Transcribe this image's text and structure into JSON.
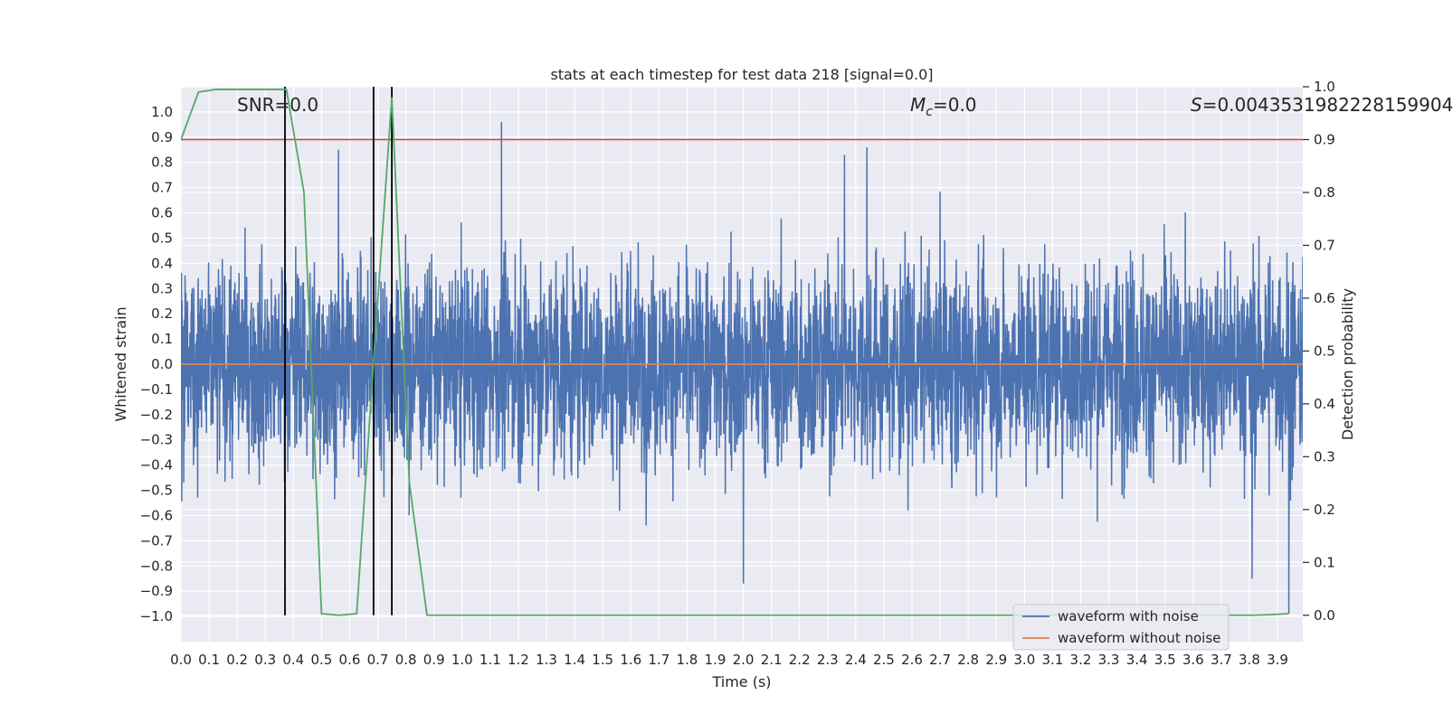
{
  "chart_data": {
    "type": "line",
    "title": "stats at each timestep for test data 218 [signal=0.0]",
    "xlabel": "Time (s)",
    "ylabel": "Whitened strain",
    "y2label": "Detection probability",
    "xlim": [
      0.0,
      3.99
    ],
    "ylim": [
      -1.1,
      1.1
    ],
    "y2lim": [
      -0.05,
      1.0
    ],
    "x_ticks": [
      "0.0",
      "0.1",
      "0.2",
      "0.3",
      "0.4",
      "0.5",
      "0.6",
      "0.7",
      "0.8",
      "0.9",
      "1.0",
      "1.1",
      "1.2",
      "1.3",
      "1.4",
      "1.5",
      "1.6",
      "1.7",
      "1.8",
      "1.9",
      "2.0",
      "2.1",
      "2.2",
      "2.3",
      "2.4",
      "2.5",
      "2.6",
      "2.7",
      "2.8",
      "2.9",
      "3.0",
      "3.1",
      "3.2",
      "3.3",
      "3.4",
      "3.5",
      "3.6",
      "3.7",
      "3.8",
      "3.9"
    ],
    "y_ticks": [
      "1.0",
      "0.9",
      "0.8",
      "0.7",
      "0.6",
      "0.5",
      "0.4",
      "0.3",
      "0.2",
      "0.1",
      "0.0",
      "−0.1",
      "−0.2",
      "−0.3",
      "−0.4",
      "−0.5",
      "−0.6",
      "−0.7",
      "−0.8",
      "−0.9",
      "−1.0"
    ],
    "y2_ticks": [
      "1.0",
      "0.9",
      "0.8",
      "0.7",
      "0.6",
      "0.5",
      "0.4",
      "0.3",
      "0.2",
      "0.1",
      "0.0"
    ],
    "grid": true,
    "annotations": {
      "snr": "SNR=0.0",
      "mc_symbol": "M",
      "mc_sub": "c",
      "mc_value": "=0.0",
      "s_symbol": "S",
      "s_value": "=0.0043531982228159904"
    },
    "threshold": {
      "value": 0.9,
      "axis": "y2",
      "color": "#c44e52"
    },
    "vertical_markers": [
      0.37,
      0.685,
      0.75
    ],
    "series": [
      {
        "name": "waveform with noise",
        "axis": "y",
        "color": "#4c72b0",
        "note_noise": {
          "std": 0.2,
          "samples": 4096,
          "spikes": [
            [
              1.14,
              0.96
            ],
            [
              2.44,
              0.86
            ],
            [
              2.36,
              0.83
            ],
            [
              0.56,
              0.85
            ],
            [
              2.0,
              -0.87
            ],
            [
              3.94,
              -0.99
            ],
            [
              3.81,
              -0.85
            ]
          ]
        }
      },
      {
        "name": "waveform without noise",
        "axis": "y",
        "color": "#dd8452",
        "x": [
          0.0,
          3.99
        ],
        "y": [
          0.0,
          0.0
        ]
      },
      {
        "name": "detection probability",
        "axis": "y2",
        "color": "#55a868",
        "x": [
          0.0,
          0.0625,
          0.125,
          0.1875,
          0.25,
          0.3125,
          0.375,
          0.4375,
          0.5,
          0.5625,
          0.625,
          0.6875,
          0.75,
          0.8125,
          0.875,
          0.9375,
          1.0,
          1.5,
          2.0,
          2.5,
          3.0,
          3.5,
          3.75,
          3.8125,
          3.875,
          3.9375
        ],
        "y": [
          0.9,
          0.99,
          0.995,
          0.995,
          0.995,
          0.995,
          0.995,
          0.8,
          0.003,
          0.0,
          0.003,
          0.5,
          0.98,
          0.25,
          0.0,
          0.0,
          0.0,
          0.0,
          0.0,
          0.0,
          0.0,
          0.0,
          0.0,
          0.0,
          0.001,
          0.003
        ]
      }
    ],
    "legend": {
      "placement": "lower right",
      "entries": [
        "waveform with noise",
        "waveform without noise"
      ]
    }
  }
}
